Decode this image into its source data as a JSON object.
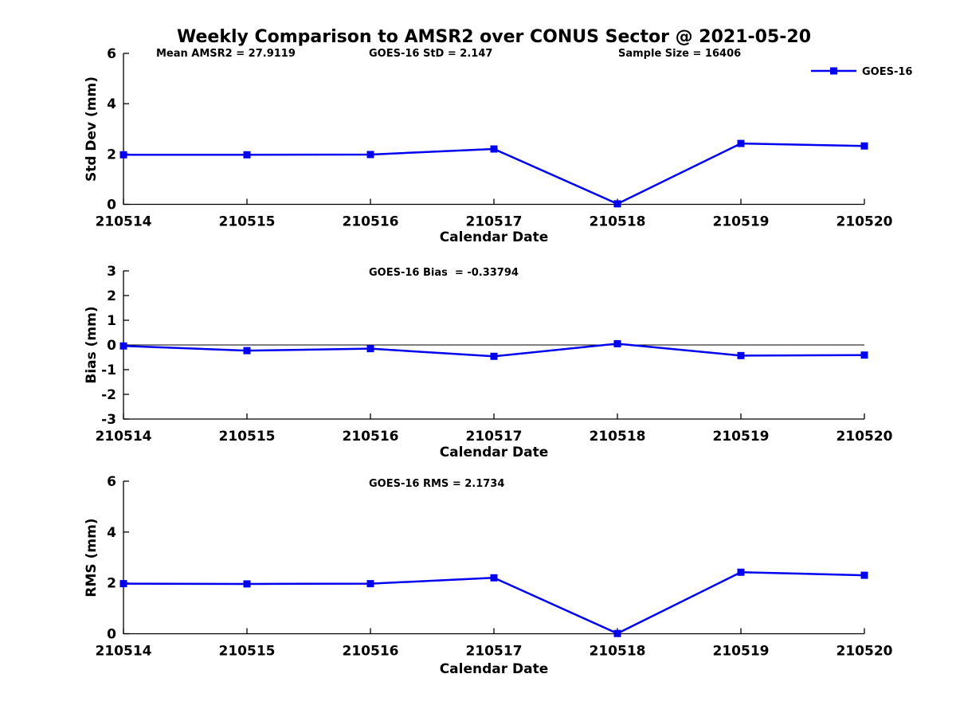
{
  "title": "Weekly Comparison to AMSR2 over CONUS Sector @ 2021-05-20",
  "legend": {
    "label": "GOES-16",
    "position": "top-right"
  },
  "colors": {
    "series": "#0000EE",
    "axis": "#000000",
    "zero_line": "#000000",
    "text": "#000000",
    "background": "#FFFFFF"
  },
  "chart_data": [
    {
      "type": "line",
      "panel": "std-dev",
      "annotations": [
        "Mean AMSR2 = 27.9119",
        "GOES-16 StD = 2.147",
        "Sample Size = 16406"
      ],
      "categories": [
        "210514",
        "210515",
        "210516",
        "210517",
        "210518",
        "210519",
        "210520"
      ],
      "series": [
        {
          "name": "GOES-16",
          "values": [
            1.97,
            1.97,
            1.98,
            2.2,
            0.02,
            2.42,
            2.32
          ]
        }
      ],
      "xlabel": "Calendar Date",
      "ylabel": "Std Dev (mm)",
      "ylim": [
        0,
        6
      ],
      "yticks": [
        0,
        2,
        4,
        6
      ],
      "zero_line": false,
      "grid": false,
      "legend_visible": true,
      "marker": "square"
    },
    {
      "type": "line",
      "panel": "bias",
      "annotations": [
        "GOES-16 Bias  = -0.33794"
      ],
      "categories": [
        "210514",
        "210515",
        "210516",
        "210517",
        "210518",
        "210519",
        "210520"
      ],
      "series": [
        {
          "name": "GOES-16",
          "values": [
            -0.04,
            -0.23,
            -0.15,
            -0.46,
            0.05,
            -0.43,
            -0.41
          ]
        }
      ],
      "xlabel": "Calendar Date",
      "ylabel": "Bias (mm)",
      "ylim": [
        -3,
        3
      ],
      "yticks": [
        -3,
        -2,
        -1,
        0,
        1,
        2,
        3
      ],
      "zero_line": true,
      "grid": false,
      "legend_visible": false,
      "marker": "square"
    },
    {
      "type": "line",
      "panel": "rms",
      "annotations": [
        "GOES-16 RMS = 2.1734"
      ],
      "categories": [
        "210514",
        "210515",
        "210516",
        "210517",
        "210518",
        "210519",
        "210520"
      ],
      "series": [
        {
          "name": "GOES-16",
          "values": [
            1.97,
            1.96,
            1.97,
            2.2,
            0.01,
            2.42,
            2.3
          ]
        }
      ],
      "xlabel": "Calendar Date",
      "ylabel": "RMS (mm)",
      "ylim": [
        0,
        6
      ],
      "yticks": [
        0,
        2,
        4,
        6
      ],
      "zero_line": false,
      "grid": false,
      "legend_visible": false,
      "marker": "square"
    }
  ]
}
